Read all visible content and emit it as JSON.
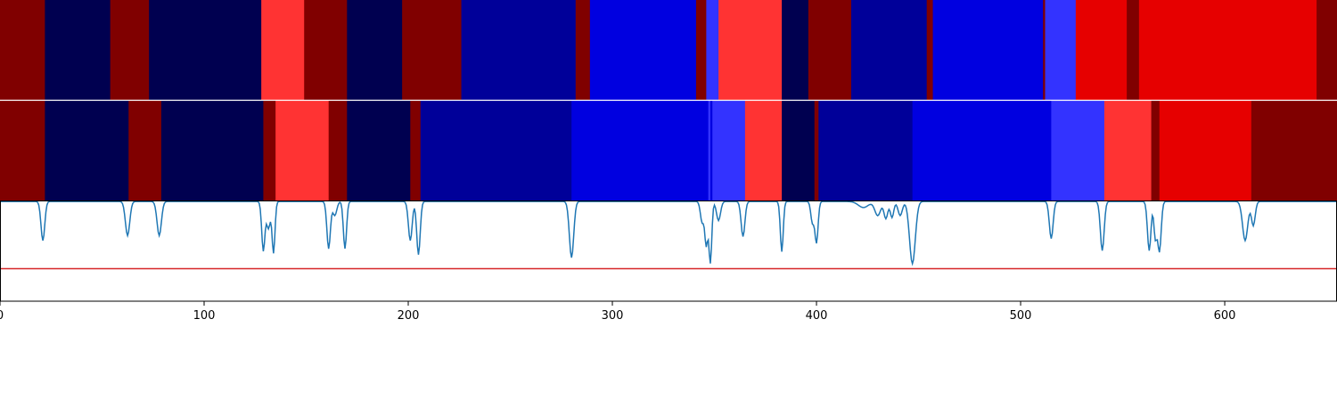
{
  "chart_data": {
    "type": "heatmap",
    "title": "",
    "xlabel": "",
    "ylabel": "",
    "xlim": [
      0,
      655
    ],
    "x_ticks": [
      0,
      100,
      200,
      300,
      400,
      500,
      600
    ],
    "x_tick_labels": [
      "0",
      "100",
      "200",
      "300",
      "400",
      "500",
      "600"
    ],
    "palette": {
      "0": "#800000",
      "1": "#000050",
      "2": "#ff3333",
      "3": "#000099",
      "4": "#0000e0",
      "5": "#3333ff",
      "6": "#e60000"
    },
    "segment_rows": [
      {
        "segments": [
          {
            "start": 0,
            "end": 22,
            "state": 0
          },
          {
            "start": 22,
            "end": 54,
            "state": 1
          },
          {
            "start": 54,
            "end": 73,
            "state": 0
          },
          {
            "start": 73,
            "end": 128,
            "state": 1
          },
          {
            "start": 128,
            "end": 149,
            "state": 2
          },
          {
            "start": 149,
            "end": 170,
            "state": 0
          },
          {
            "start": 170,
            "end": 197,
            "state": 1
          },
          {
            "start": 197,
            "end": 226,
            "state": 0
          },
          {
            "start": 226,
            "end": 282,
            "state": 3
          },
          {
            "start": 282,
            "end": 289,
            "state": 0
          },
          {
            "start": 289,
            "end": 341,
            "state": 4
          },
          {
            "start": 341,
            "end": 346,
            "state": 0
          },
          {
            "start": 346,
            "end": 352,
            "state": 5
          },
          {
            "start": 352,
            "end": 383,
            "state": 2
          },
          {
            "start": 383,
            "end": 396,
            "state": 1
          },
          {
            "start": 396,
            "end": 417,
            "state": 0
          },
          {
            "start": 417,
            "end": 454,
            "state": 3
          },
          {
            "start": 454,
            "end": 457,
            "state": 0
          },
          {
            "start": 457,
            "end": 511,
            "state": 4
          },
          {
            "start": 511,
            "end": 512,
            "state": 0
          },
          {
            "start": 512,
            "end": 527,
            "state": 5
          },
          {
            "start": 527,
            "end": 552,
            "state": 6
          },
          {
            "start": 552,
            "end": 558,
            "state": 0
          },
          {
            "start": 558,
            "end": 645,
            "state": 6
          },
          {
            "start": 645,
            "end": 655,
            "state": 0
          }
        ]
      },
      {
        "segments": [
          {
            "start": 0,
            "end": 22,
            "state": 0
          },
          {
            "start": 22,
            "end": 63,
            "state": 1
          },
          {
            "start": 63,
            "end": 79,
            "state": 0
          },
          {
            "start": 79,
            "end": 129,
            "state": 1
          },
          {
            "start": 129,
            "end": 135,
            "state": 0
          },
          {
            "start": 135,
            "end": 161,
            "state": 2
          },
          {
            "start": 161,
            "end": 170,
            "state": 0
          },
          {
            "start": 170,
            "end": 201,
            "state": 1
          },
          {
            "start": 201,
            "end": 206,
            "state": 0
          },
          {
            "start": 206,
            "end": 280,
            "state": 3
          },
          {
            "start": 280,
            "end": 347,
            "state": 4
          },
          {
            "start": 347,
            "end": 348,
            "state": 5
          },
          {
            "start": 348,
            "end": 349,
            "state": 4
          },
          {
            "start": 349,
            "end": 365,
            "state": 5
          },
          {
            "start": 365,
            "end": 383,
            "state": 2
          },
          {
            "start": 383,
            "end": 399,
            "state": 1
          },
          {
            "start": 399,
            "end": 401,
            "state": 0
          },
          {
            "start": 401,
            "end": 447,
            "state": 3
          },
          {
            "start": 447,
            "end": 515,
            "state": 4
          },
          {
            "start": 515,
            "end": 541,
            "state": 5
          },
          {
            "start": 541,
            "end": 564,
            "state": 2
          },
          {
            "start": 564,
            "end": 568,
            "state": 0
          },
          {
            "start": 568,
            "end": 613,
            "state": 6
          },
          {
            "start": 613,
            "end": 655,
            "state": 0
          }
        ]
      }
    ],
    "line_series": {
      "color": "#1f77b4",
      "ylim": [
        0,
        1
      ],
      "threshold": 0.32,
      "threshold_color": "#d62728",
      "baseline": 0.99,
      "dips": [
        {
          "x": 21,
          "value": 0.6,
          "width": 1.3
        },
        {
          "x": 62.5,
          "value": 0.65,
          "width": 1.5
        },
        {
          "x": 78,
          "value": 0.65,
          "width": 1.5
        },
        {
          "x": 129,
          "value": 0.5,
          "width": 1.1
        },
        {
          "x": 131.5,
          "value": 0.72,
          "width": 1.3
        },
        {
          "x": 134,
          "value": 0.48,
          "width": 1.0
        },
        {
          "x": 161,
          "value": 0.52,
          "width": 1.2
        },
        {
          "x": 164,
          "value": 0.85,
          "width": 1.4
        },
        {
          "x": 169,
          "value": 0.52,
          "width": 1.1
        },
        {
          "x": 201,
          "value": 0.6,
          "width": 1.3
        },
        {
          "x": 205,
          "value": 0.46,
          "width": 1.2
        },
        {
          "x": 280,
          "value": 0.43,
          "width": 1.5
        },
        {
          "x": 344,
          "value": 0.78,
          "width": 1.2
        },
        {
          "x": 346,
          "value": 0.56,
          "width": 1.0
        },
        {
          "x": 348,
          "value": 0.38,
          "width": 1.0
        },
        {
          "x": 352,
          "value": 0.8,
          "width": 1.4
        },
        {
          "x": 364,
          "value": 0.64,
          "width": 1.3
        },
        {
          "x": 383,
          "value": 0.49,
          "width": 1.0
        },
        {
          "x": 398,
          "value": 0.78,
          "width": 1.1
        },
        {
          "x": 400,
          "value": 0.58,
          "width": 1.1
        },
        {
          "x": 423,
          "value": 0.93,
          "width": 3.5
        },
        {
          "x": 430,
          "value": 0.85,
          "width": 2.0
        },
        {
          "x": 434,
          "value": 0.82,
          "width": 1.3
        },
        {
          "x": 437,
          "value": 0.83,
          "width": 1.2
        },
        {
          "x": 441,
          "value": 0.85,
          "width": 1.5
        },
        {
          "x": 447,
          "value": 0.37,
          "width": 2.0
        },
        {
          "x": 515,
          "value": 0.62,
          "width": 1.3
        },
        {
          "x": 540,
          "value": 0.5,
          "width": 1.3
        },
        {
          "x": 563,
          "value": 0.5,
          "width": 1.2
        },
        {
          "x": 566,
          "value": 0.63,
          "width": 1.0
        },
        {
          "x": 568,
          "value": 0.49,
          "width": 1.2
        },
        {
          "x": 610,
          "value": 0.6,
          "width": 1.8
        },
        {
          "x": 614,
          "value": 0.75,
          "width": 1.3
        }
      ]
    }
  }
}
